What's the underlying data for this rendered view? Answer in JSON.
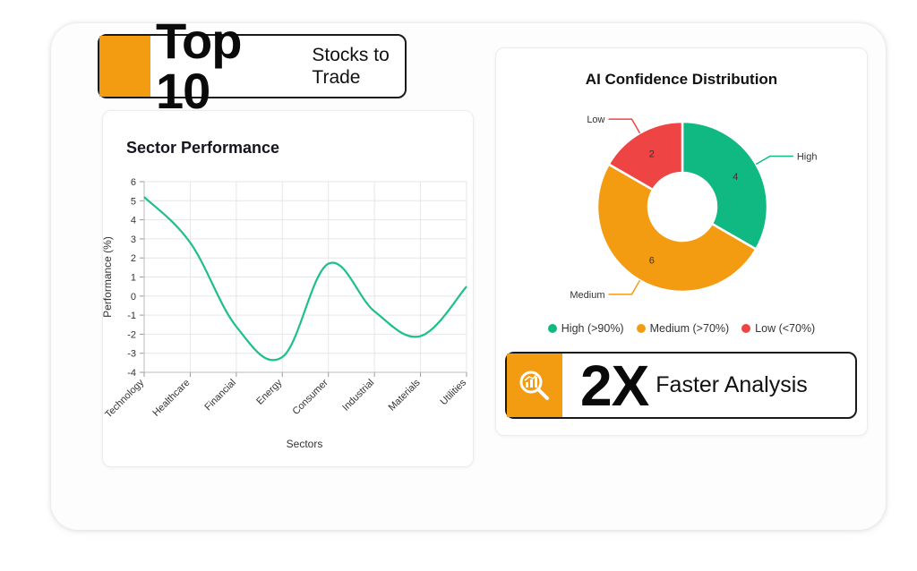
{
  "header_badge": {
    "big_text": "Top 10",
    "small_text": "Stocks to Trade"
  },
  "sector_panel": {
    "title": "Sector Performance"
  },
  "ai_panel": {
    "title": "AI Confidence Distribution"
  },
  "footer_badge": {
    "big_text": "2X",
    "small_text": "Faster Analysis",
    "icon": "magnifier-chart-icon"
  },
  "colors": {
    "accent": "#f39c12",
    "line": "#1fbf8a",
    "high": "#10b981",
    "medium": "#f39c12",
    "low": "#ef4444"
  },
  "chart_data": [
    {
      "type": "line",
      "title": "Sector Performance",
      "xlabel": "Sectors",
      "ylabel": "Performance (%)",
      "categories": [
        "Technology",
        "Healthcare",
        "Financial",
        "Energy",
        "Consumer",
        "Industrial",
        "Materials",
        "Utilities"
      ],
      "series": [
        {
          "values": [
            5.2,
            2.8,
            -1.6,
            -3.2,
            1.7,
            -0.8,
            -2.1,
            0.5
          ]
        }
      ],
      "ylim": [
        -4,
        6
      ],
      "yticks": [
        "6",
        "5",
        "4",
        "3",
        "2",
        "1",
        "0",
        "-1",
        "-2",
        "-3",
        "-4"
      ],
      "grid": true,
      "curve": "smooth"
    },
    {
      "type": "pie",
      "variant": "doughnut",
      "title": "AI Confidence Distribution",
      "slices": [
        {
          "label": "High",
          "value": 4,
          "color": "#10b981",
          "legend": "High (>90%)"
        },
        {
          "label": "Medium",
          "value": 6,
          "color": "#f39c12",
          "legend": "Medium (>70%)"
        },
        {
          "label": "Low",
          "value": 2,
          "color": "#ef4444",
          "legend": "Low (<70%)"
        }
      ],
      "legend_position": "bottom"
    }
  ]
}
